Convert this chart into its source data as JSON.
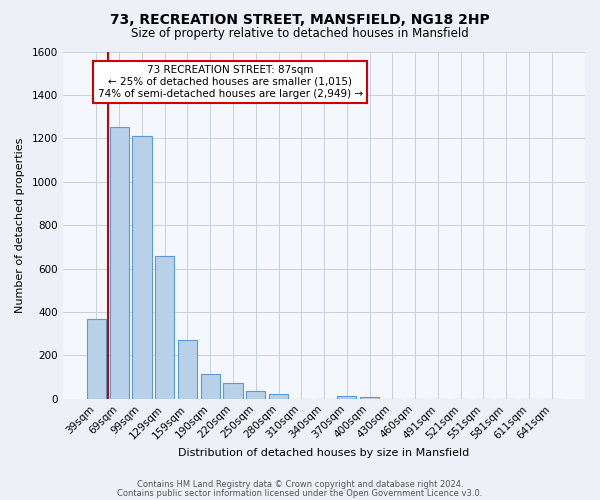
{
  "title": "73, RECREATION STREET, MANSFIELD, NG18 2HP",
  "subtitle": "Size of property relative to detached houses in Mansfield",
  "xlabel": "Distribution of detached houses by size in Mansfield",
  "ylabel": "Number of detached properties",
  "bins": [
    "39sqm",
    "69sqm",
    "99sqm",
    "129sqm",
    "159sqm",
    "190sqm",
    "220sqm",
    "250sqm",
    "280sqm",
    "310sqm",
    "340sqm",
    "370sqm",
    "400sqm",
    "430sqm",
    "460sqm",
    "491sqm",
    "521sqm",
    "551sqm",
    "581sqm",
    "611sqm",
    "641sqm"
  ],
  "values": [
    370,
    1250,
    1210,
    660,
    270,
    115,
    75,
    38,
    20,
    0,
    0,
    15,
    8,
    0,
    0,
    0,
    0,
    0,
    0,
    0,
    0
  ],
  "bar_color": "#b8d0e8",
  "bar_edge_color": "#5b9bd5",
  "vline_color": "#cc0000",
  "vline_x": 0.5,
  "annotation_title": "73 RECREATION STREET: 87sqm",
  "annotation_line1": "← 25% of detached houses are smaller (1,015)",
  "annotation_line2": "74% of semi-detached houses are larger (2,949) →",
  "annotation_box_color": "#ffffff",
  "annotation_box_edge_color": "#cc0000",
  "footer1": "Contains HM Land Registry data © Crown copyright and database right 2024.",
  "footer2": "Contains public sector information licensed under the Open Government Licence v3.0.",
  "background_color": "#edf1f7",
  "plot_background_color": "#f4f7fc",
  "grid_color": "#c8cfe0",
  "ylim": [
    0,
    1600
  ],
  "yticks": [
    0,
    200,
    400,
    600,
    800,
    1000,
    1200,
    1400,
    1600
  ],
  "title_fontsize": 10,
  "subtitle_fontsize": 8.5,
  "ylabel_fontsize": 8,
  "xlabel_fontsize": 8,
  "tick_fontsize": 7.5,
  "footer_fontsize": 6
}
